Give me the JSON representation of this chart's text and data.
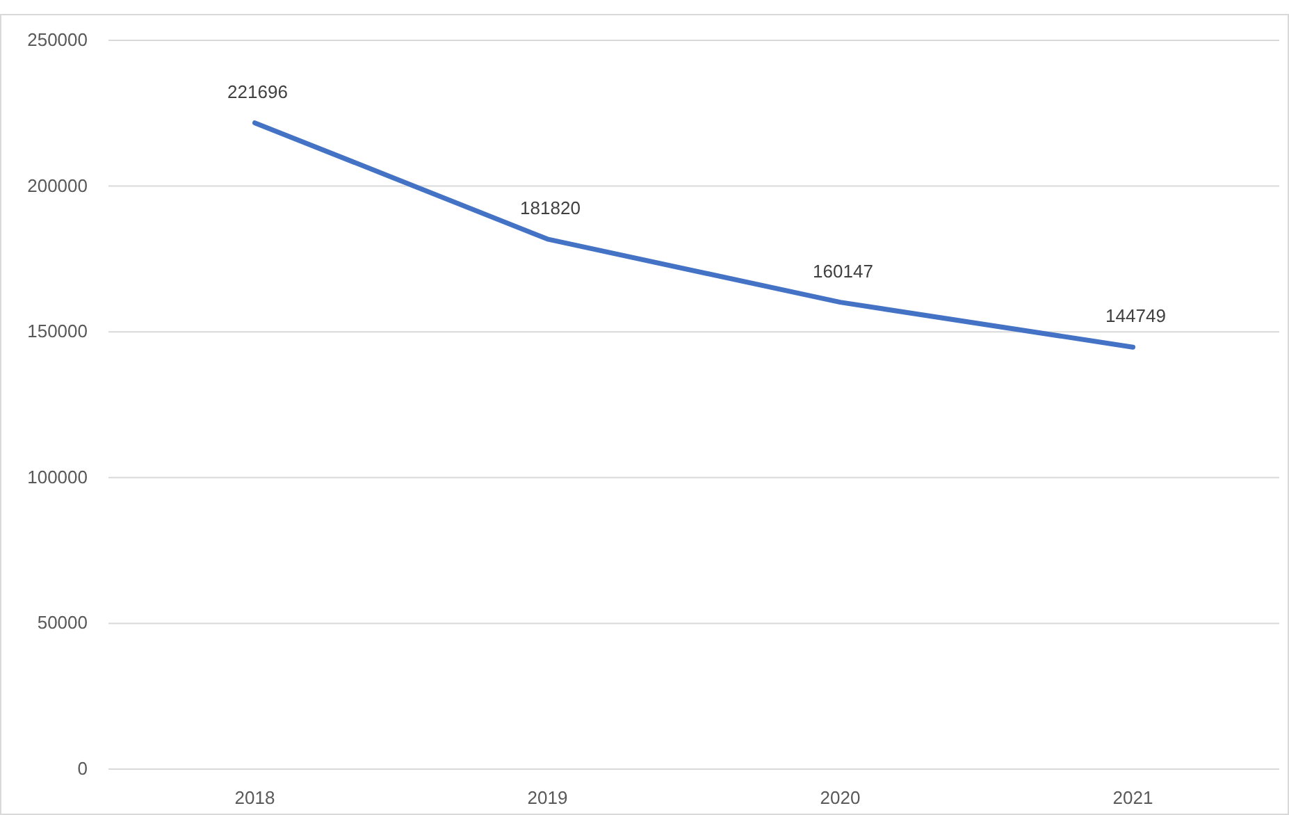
{
  "chart_data": {
    "type": "line",
    "categories": [
      "2018",
      "2019",
      "2020",
      "2021"
    ],
    "series": [
      {
        "color": "#4472c4",
        "values": [
          221696,
          181820,
          160147,
          144749
        ]
      }
    ],
    "ylim": [
      0,
      250000
    ],
    "yticks": [
      0,
      50000,
      100000,
      150000,
      200000,
      250000
    ],
    "grid": "y",
    "data_labels": true,
    "marker": "none"
  }
}
